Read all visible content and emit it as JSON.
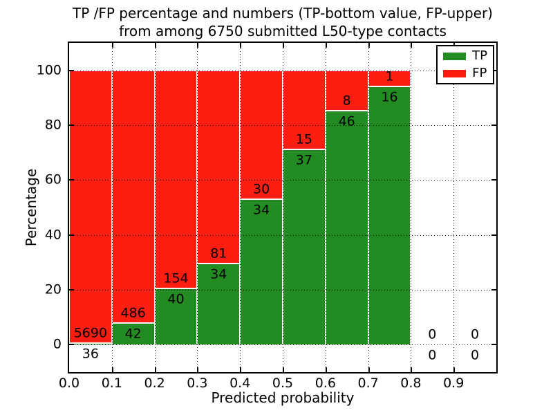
{
  "title": {
    "line1": "TP /FP percentage and numbers (TP-bottom value, FP-upper)",
    "line2": "from among 6750 submitted L50-type contacts"
  },
  "chart_data": {
    "type": "bar",
    "stacked": true,
    "title": "TP /FP percentage and numbers (TP-bottom value, FP-upper) from among 6750 submitted L50-type contacts",
    "xlabel": "Predicted probability",
    "ylabel": "Percentage",
    "xlim": [
      0.0,
      1.0
    ],
    "ylim": [
      -10,
      110
    ],
    "bin_width": 0.1,
    "bin_starts": [
      0.0,
      0.1,
      0.2,
      0.3,
      0.4,
      0.5,
      0.6,
      0.7,
      0.8,
      0.9
    ],
    "xtick_labels": [
      "0.0",
      "0.1",
      "0.2",
      "0.3",
      "0.4",
      "0.5",
      "0.6",
      "0.7",
      "0.8",
      "0.9"
    ],
    "yticks": [
      0,
      20,
      40,
      60,
      80,
      100
    ],
    "grid": "dotted",
    "grid_color": "#000000",
    "bar_edge_color": "#ffffff",
    "total_submitted": 6750,
    "series": [
      {
        "name": "TP",
        "color": "#228b22",
        "counts": [
          36,
          42,
          40,
          34,
          34,
          37,
          46,
          16,
          0,
          0
        ]
      },
      {
        "name": "FP",
        "color": "#fb1e11",
        "counts": [
          5690,
          486,
          154,
          81,
          30,
          15,
          8,
          1,
          0,
          0
        ]
      }
    ],
    "tp_percent": [
      0.63,
      7.95,
      20.62,
      29.57,
      53.13,
      71.15,
      85.19,
      94.12,
      0,
      0
    ],
    "legend": {
      "position": "upper right",
      "entries": [
        "TP",
        "FP"
      ]
    }
  }
}
